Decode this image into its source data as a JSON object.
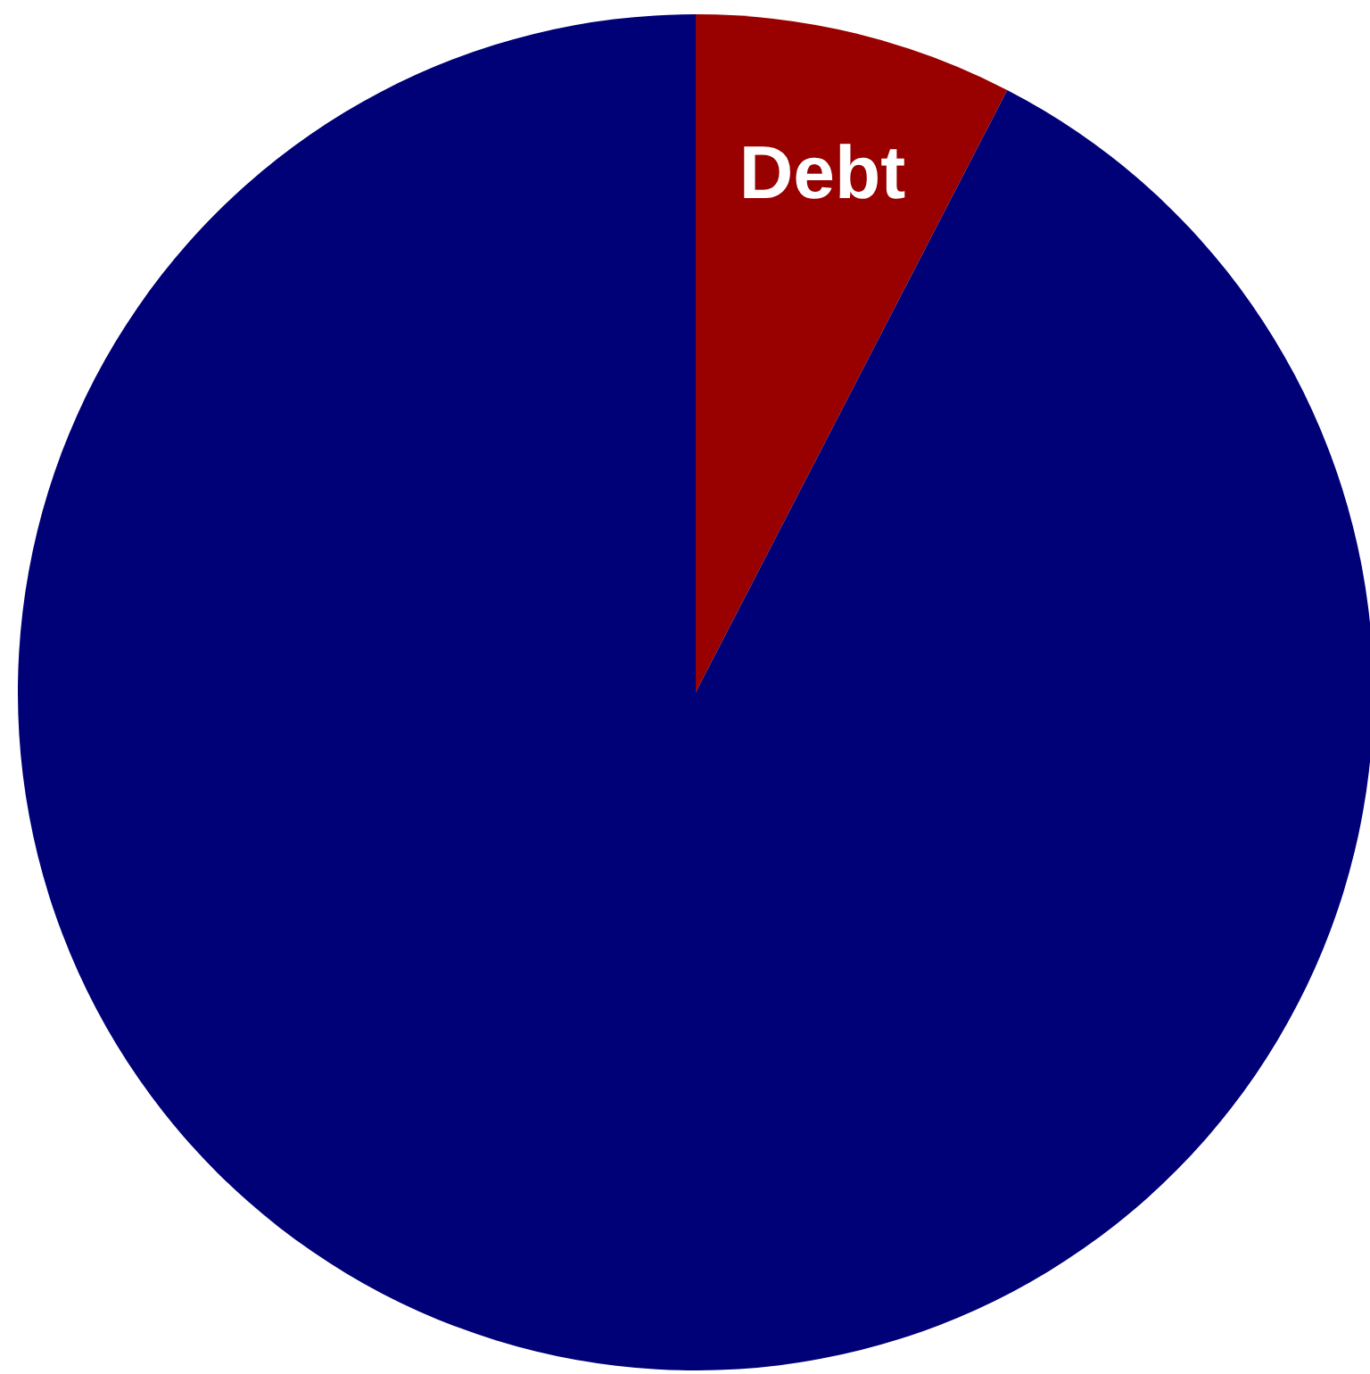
{
  "chart_data": {
    "type": "pie",
    "categories": [
      "Debt",
      null
    ],
    "values": [
      7.6,
      92.4
    ],
    "colors": [
      "#990000",
      "#000077"
    ],
    "data_labels": false
  }
}
